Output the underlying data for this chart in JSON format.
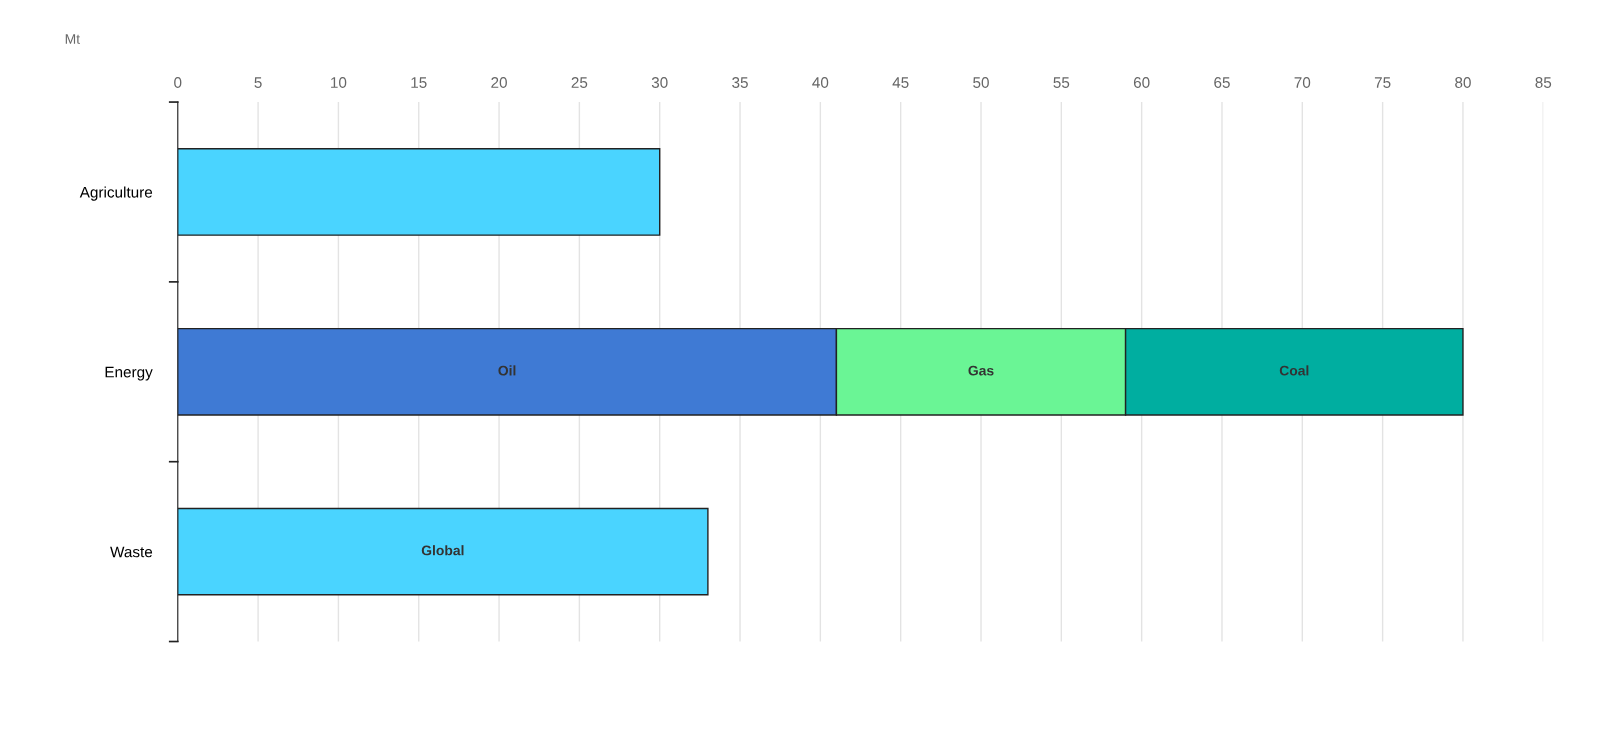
{
  "chart_data": {
    "type": "bar",
    "orientation": "horizontal",
    "stacked": true,
    "xlabel": "Mt",
    "categories": [
      "Agriculture",
      "Energy",
      "Waste"
    ],
    "series": [
      {
        "color": "#4ad4ff",
        "values": [
          30,
          null,
          null
        ]
      },
      {
        "name": "Oil",
        "color": "#3f7ad4",
        "values": [
          null,
          41,
          null
        ]
      },
      {
        "name": "Gas",
        "color": "#6af595",
        "values": [
          null,
          18,
          null
        ]
      },
      {
        "name": "Coal",
        "color": "#00aea0",
        "values": [
          null,
          21,
          null
        ]
      },
      {
        "name": "Global",
        "color": "#4ad4ff",
        "values": [
          null,
          null,
          33
        ]
      }
    ],
    "xlim": [
      0,
      85
    ],
    "xticks": [
      0,
      5,
      10,
      15,
      20,
      25,
      30,
      35,
      40,
      45,
      50,
      55,
      60,
      65,
      70,
      75,
      80,
      85
    ],
    "grid": "x"
  }
}
